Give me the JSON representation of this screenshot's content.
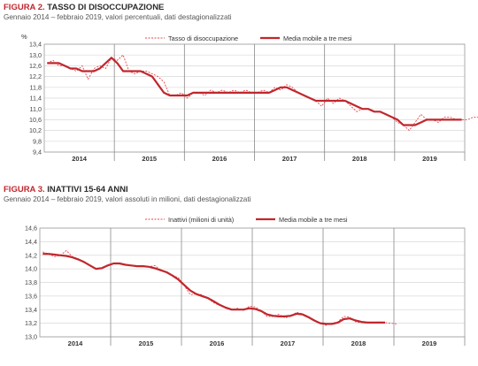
{
  "chart_data": [
    {
      "type": "line",
      "figure_label": "FIGURA 2.",
      "title": "TASSO DI DISOCCUPAZIONE",
      "subtitle": "Gennaio 2014 – febbraio 2019, valori percentuali, dati destagionalizzati",
      "unit_label": "%",
      "ylim": [
        9.4,
        13.4
      ],
      "yticks": [
        "13,4",
        "13,0",
        "12,6",
        "12,2",
        "11,8",
        "11,4",
        "11,0",
        "10,6",
        "10,2",
        "9,8",
        "9,4"
      ],
      "ytick_values": [
        13.4,
        13.0,
        12.6,
        12.2,
        11.8,
        11.4,
        11.0,
        10.6,
        10.2,
        9.8,
        9.4
      ],
      "years": [
        "2014",
        "2015",
        "2016",
        "2017",
        "2018",
        "2019"
      ],
      "grid": true,
      "legend_position": "top",
      "series": [
        {
          "name": "Tasso di disoccupazione",
          "style": "dashed",
          "color": "#e8434b",
          "values": [
            12.7,
            12.8,
            12.6,
            12.6,
            12.5,
            12.4,
            12.6,
            12.1,
            12.5,
            12.6,
            12.5,
            12.9,
            12.8,
            13.0,
            12.4,
            12.3,
            12.4,
            12.4,
            12.3,
            12.2,
            12.0,
            11.5,
            11.5,
            11.6,
            11.4,
            11.6,
            11.6,
            11.5,
            11.7,
            11.6,
            11.7,
            11.6,
            11.7,
            11.6,
            11.7,
            11.6,
            11.6,
            11.7,
            11.6,
            11.8,
            11.7,
            11.9,
            11.8,
            11.6,
            11.5,
            11.4,
            11.3,
            11.1,
            11.4,
            11.2,
            11.4,
            11.3,
            11.1,
            10.9,
            11.0,
            11.0,
            10.9,
            10.9,
            10.8,
            10.7,
            10.5,
            10.4,
            10.2,
            10.5,
            10.8,
            10.6,
            10.6,
            10.5,
            10.7,
            10.7,
            10.6,
            10.6,
            10.6,
            10.7,
            10.7
          ]
        },
        {
          "name": "Media mobile a tre mesi",
          "style": "solid",
          "color": "#c0272d",
          "values": [
            12.7,
            12.7,
            12.7,
            12.6,
            12.5,
            12.5,
            12.4,
            12.4,
            12.4,
            12.5,
            12.7,
            12.9,
            12.7,
            12.4,
            12.4,
            12.4,
            12.4,
            12.3,
            12.2,
            11.9,
            11.6,
            11.5,
            11.5,
            11.5,
            11.5,
            11.6,
            11.6,
            11.6,
            11.6,
            11.6,
            11.6,
            11.6,
            11.6,
            11.6,
            11.6,
            11.6,
            11.6,
            11.6,
            11.6,
            11.7,
            11.8,
            11.8,
            11.7,
            11.6,
            11.5,
            11.4,
            11.3,
            11.3,
            11.3,
            11.3,
            11.3,
            11.3,
            11.2,
            11.1,
            11.0,
            11.0,
            10.9,
            10.9,
            10.8,
            10.7,
            10.6,
            10.4,
            10.4,
            10.4,
            10.5,
            10.6,
            10.6,
            10.6,
            10.6,
            10.6,
            10.6,
            10.6
          ]
        }
      ]
    },
    {
      "type": "line",
      "figure_label": "FIGURA 3.",
      "title": "INATTIVI 15-64 ANNI",
      "subtitle": "Gennaio 2014 – febbraio 2019, valori assoluti in milioni, dati destagionalizzati",
      "unit_label": "",
      "ylim": [
        13.0,
        14.6
      ],
      "yticks": [
        "14,6",
        "14,4",
        "14,2",
        "14,0",
        "13,8",
        "13,6",
        "13,4",
        "13,2",
        "13,0"
      ],
      "ytick_values": [
        14.6,
        14.4,
        14.2,
        14.0,
        13.8,
        13.6,
        13.4,
        13.2,
        13.0
      ],
      "years": [
        "2014",
        "2015",
        "2016",
        "2017",
        "2018",
        "2019"
      ],
      "grid": true,
      "legend_position": "top",
      "series": [
        {
          "name": "Inattivi (milioni di unità)",
          "style": "dashed",
          "color": "#e8434b",
          "values": [
            14.25,
            14.22,
            14.18,
            14.2,
            14.27,
            14.18,
            14.15,
            14.1,
            14.05,
            14.0,
            14.02,
            14.06,
            14.08,
            14.07,
            14.06,
            14.05,
            14.04,
            14.05,
            14.03,
            14.05,
            13.98,
            13.96,
            13.9,
            13.87,
            13.75,
            13.62,
            13.63,
            13.62,
            13.56,
            13.5,
            13.46,
            13.42,
            13.4,
            13.42,
            13.39,
            13.45,
            13.44,
            13.38,
            13.3,
            13.3,
            13.33,
            13.28,
            13.3,
            13.36,
            13.34,
            13.3,
            13.25,
            13.2,
            13.17,
            13.2,
            13.22,
            13.3,
            13.29,
            13.22,
            13.21,
            13.2,
            13.21,
            13.22,
            13.21,
            13.2,
            13.19
          ]
        },
        {
          "name": "Media mobile a tre mesi",
          "style": "solid",
          "color": "#c0272d",
          "values": [
            14.22,
            14.22,
            14.21,
            14.2,
            14.19,
            14.17,
            14.14,
            14.1,
            14.05,
            14.0,
            14.01,
            14.05,
            14.08,
            14.08,
            14.06,
            14.05,
            14.04,
            14.04,
            14.03,
            14.01,
            13.98,
            13.95,
            13.9,
            13.84,
            13.76,
            13.68,
            13.63,
            13.6,
            13.57,
            13.52,
            13.47,
            13.43,
            13.4,
            13.4,
            13.4,
            13.42,
            13.41,
            13.38,
            13.33,
            13.31,
            13.3,
            13.3,
            13.31,
            13.34,
            13.33,
            13.29,
            13.24,
            13.2,
            13.19,
            13.19,
            13.21,
            13.26,
            13.27,
            13.24,
            13.22,
            13.21,
            13.21,
            13.21,
            13.21
          ]
        }
      ]
    }
  ]
}
